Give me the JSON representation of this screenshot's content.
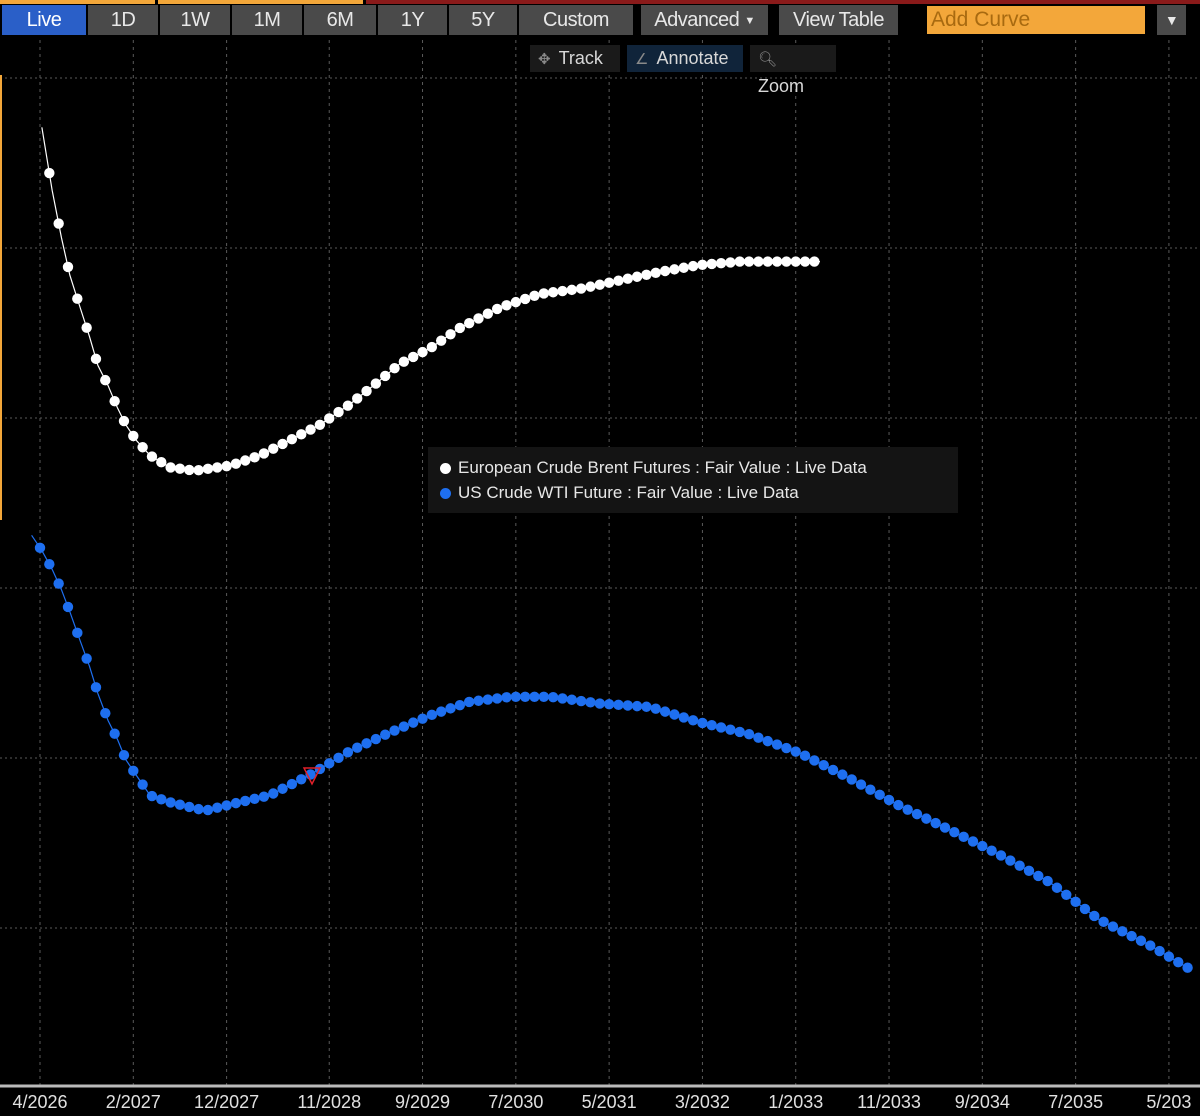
{
  "toolbar": {
    "ranges": [
      "Live",
      "1D",
      "1W",
      "1M",
      "6M",
      "1Y",
      "5Y",
      "Custom"
    ],
    "active_range": "Live",
    "advanced_label": "Advanced",
    "view_table_label": "View Table",
    "add_curve_placeholder": "Add Curve"
  },
  "tools": {
    "track": "Track",
    "annotate": "Annotate",
    "zoom": "Zoom",
    "active": "Annotate"
  },
  "colors": {
    "brent": "#ffffff",
    "wti": "#1e6ff0",
    "accent": "#f3a73a",
    "grid": "#5a5a5a"
  },
  "chart_data": {
    "type": "scatter",
    "title": "",
    "xlabel": "",
    "ylabel": "",
    "x_unit": "months from 4/2026",
    "y_unit": "unlabeled (gridline units)",
    "xlim": [
      -1,
      125
    ],
    "ylim": [
      -0.93,
      5.22
    ],
    "grid": true,
    "legend_position": "center",
    "x_tick_labels": [
      "4/2026",
      "2/2027",
      "12/2027",
      "11/2028",
      "9/2029",
      "7/2030",
      "5/2031",
      "3/2032",
      "1/2033",
      "11/2033",
      "9/2034",
      "7/2035",
      "5/203"
    ],
    "x_tick_values": [
      0,
      10,
      20,
      31,
      41,
      51,
      61,
      71,
      81,
      91,
      101,
      111,
      121
    ],
    "series": [
      {
        "name": "European Crude Brent Futures : Fair Value : Live Data",
        "color": "#ffffff",
        "points": [
          [
            0.2,
            4.71
          ],
          [
            1.3,
            4.34
          ],
          [
            2.3,
            4.06
          ],
          [
            3.2,
            3.84
          ],
          [
            4.3,
            3.65
          ],
          [
            5.3,
            3.48
          ],
          [
            6.2,
            3.31
          ],
          [
            7.3,
            3.19
          ],
          [
            8.3,
            3.06
          ],
          [
            9.2,
            2.96
          ],
          [
            10.3,
            2.87
          ],
          [
            11.8,
            2.78
          ],
          [
            13.9,
            2.71
          ],
          [
            16.6,
            2.69
          ],
          [
            20.4,
            2.72
          ],
          [
            23.6,
            2.78
          ],
          [
            26.8,
            2.87
          ],
          [
            30,
            2.96
          ],
          [
            33.2,
            3.08
          ],
          [
            36.4,
            3.22
          ],
          [
            38.6,
            3.32
          ],
          [
            41.8,
            3.41
          ],
          [
            45,
            3.53
          ],
          [
            49.3,
            3.65
          ],
          [
            53.6,
            3.73
          ],
          [
            57.9,
            3.76
          ],
          [
            62.2,
            3.81
          ],
          [
            66.5,
            3.86
          ],
          [
            70.7,
            3.9
          ],
          [
            75,
            3.92
          ],
          [
            79.3,
            3.92
          ],
          [
            83.6,
            3.92
          ]
        ]
      },
      {
        "name": "US Crude WTI Future : Fair Value : Live Data",
        "color": "#1e6ff0",
        "points": [
          [
            -0.9,
            2.31
          ],
          [
            0.2,
            2.22
          ],
          [
            1.3,
            2.11
          ],
          [
            2.3,
            1.99
          ],
          [
            3.2,
            1.86
          ],
          [
            4.3,
            1.69
          ],
          [
            5.3,
            1.54
          ],
          [
            6.2,
            1.38
          ],
          [
            7.3,
            1.22
          ],
          [
            8.3,
            1.11
          ],
          [
            9.2,
            0.99
          ],
          [
            10.3,
            0.9
          ],
          [
            11.8,
            0.78
          ],
          [
            13.9,
            0.74
          ],
          [
            17.7,
            0.69
          ],
          [
            21.4,
            0.74
          ],
          [
            24.6,
            0.78
          ],
          [
            28.9,
            0.9
          ],
          [
            33.2,
            1.04
          ],
          [
            37.5,
            1.15
          ],
          [
            41.8,
            1.25
          ],
          [
            46,
            1.33
          ],
          [
            50.4,
            1.36
          ],
          [
            54.7,
            1.36
          ],
          [
            60,
            1.32
          ],
          [
            65.4,
            1.3
          ],
          [
            70.7,
            1.21
          ],
          [
            76,
            1.14
          ],
          [
            81.4,
            1.03
          ],
          [
            86.8,
            0.88
          ],
          [
            92.1,
            0.72
          ],
          [
            97.4,
            0.58
          ],
          [
            102.9,
            0.43
          ],
          [
            108.2,
            0.27
          ],
          [
            113.5,
            0.05
          ],
          [
            118.9,
            -0.1
          ],
          [
            123.2,
            -0.24
          ]
        ]
      }
    ]
  }
}
